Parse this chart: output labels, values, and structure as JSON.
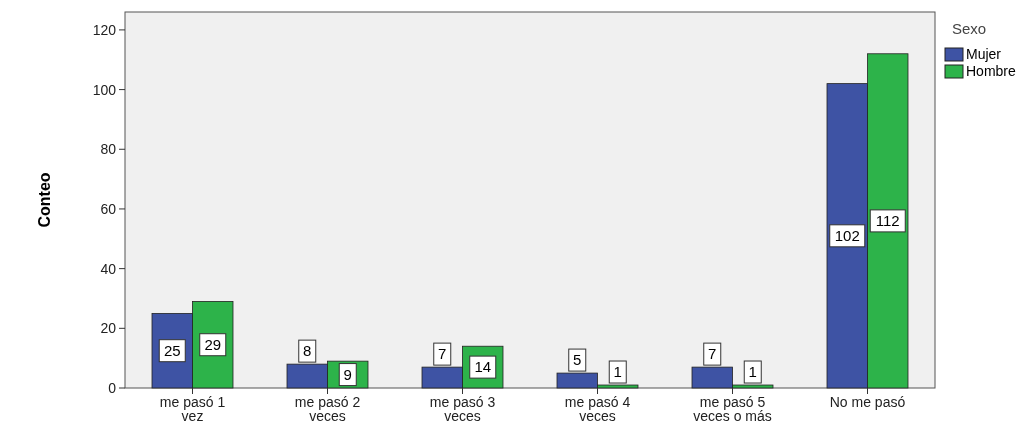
{
  "chart_data": {
    "type": "bar",
    "ylabel": "Conteo",
    "legend_title": "Sexo",
    "categories": [
      "me pasó 1 vez",
      "me pasó 2 veces",
      "me pasó 3 veces",
      "me pasó 4 veces",
      "me pasó 5 veces o más",
      "No me pasó"
    ],
    "series": [
      {
        "name": "Mujer",
        "color": "#3e53a4",
        "values": [
          25,
          8,
          7,
          5,
          7,
          102
        ]
      },
      {
        "name": "Hombre",
        "color": "#2db34a",
        "values": [
          29,
          9,
          14,
          1,
          1,
          112
        ]
      }
    ],
    "ylim": [
      0,
      126
    ],
    "yticks": [
      0,
      20,
      40,
      60,
      80,
      100,
      120
    ],
    "data_labels": true,
    "legend": "right",
    "grid": false
  }
}
